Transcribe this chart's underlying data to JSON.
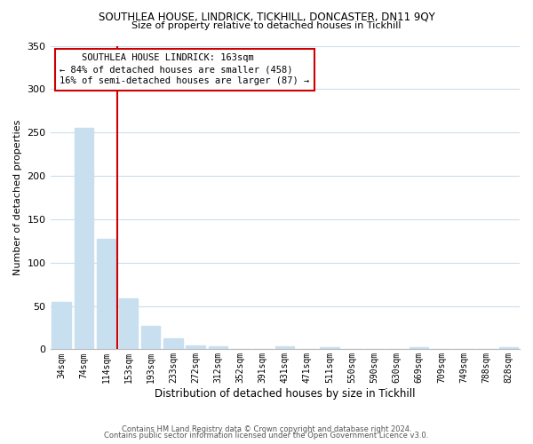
{
  "title": "SOUTHLEA HOUSE, LINDRICK, TICKHILL, DONCASTER, DN11 9QY",
  "subtitle": "Size of property relative to detached houses in Tickhill",
  "xlabel": "Distribution of detached houses by size in Tickhill",
  "ylabel": "Number of detached properties",
  "categories": [
    "34sqm",
    "74sqm",
    "114sqm",
    "153sqm",
    "193sqm",
    "233sqm",
    "272sqm",
    "312sqm",
    "352sqm",
    "391sqm",
    "431sqm",
    "471sqm",
    "511sqm",
    "550sqm",
    "590sqm",
    "630sqm",
    "669sqm",
    "709sqm",
    "749sqm",
    "788sqm",
    "828sqm"
  ],
  "values": [
    55,
    255,
    127,
    59,
    27,
    13,
    5,
    4,
    0,
    0,
    3,
    0,
    2,
    0,
    0,
    0,
    2,
    0,
    0,
    0,
    2
  ],
  "bar_color": "#c8dff0",
  "vline_color": "#cc0000",
  "vline_pos": 2.5,
  "annotation_title": "SOUTHLEA HOUSE LINDRICK: 163sqm",
  "annotation_line1": "← 84% of detached houses are smaller (458)",
  "annotation_line2": "16% of semi-detached houses are larger (87) →",
  "annotation_box_color": "#ffffff",
  "annotation_box_edge": "#cc0000",
  "ylim": [
    0,
    350
  ],
  "yticks": [
    0,
    50,
    100,
    150,
    200,
    250,
    300,
    350
  ],
  "footer1": "Contains HM Land Registry data © Crown copyright and database right 2024.",
  "footer2": "Contains public sector information licensed under the Open Government Licence v3.0.",
  "bg_color": "#ffffff",
  "grid_color": "#ccdded",
  "title_fontsize": 8.5,
  "subtitle_fontsize": 8,
  "ylabel_fontsize": 8,
  "xlabel_fontsize": 8.5,
  "tick_fontsize": 7,
  "ann_fontsize": 7.5,
  "footer_fontsize": 6
}
